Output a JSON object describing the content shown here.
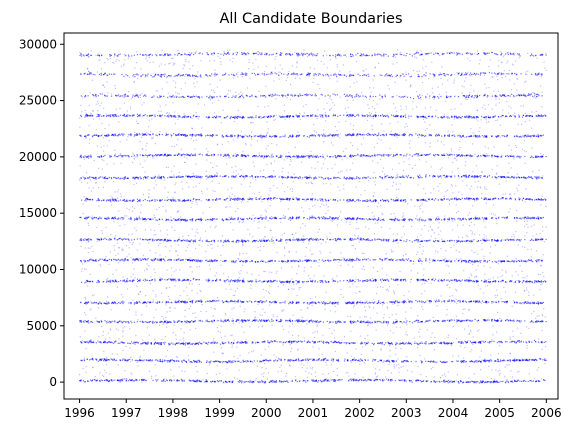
{
  "chart_data": {
    "type": "scatter",
    "title": "All Candidate Boundaries",
    "xlabel": "",
    "ylabel": "",
    "xlim": [
      "1995-09",
      "2006-04"
    ],
    "ylim": [
      -1500,
      31000
    ],
    "x_ticks": [
      "1996",
      "1997",
      "1998",
      "1999",
      "2000",
      "2001",
      "2002",
      "2003",
      "2004",
      "2005",
      "2006"
    ],
    "y_ticks": [
      0,
      5000,
      10000,
      15000,
      20000,
      25000,
      30000
    ],
    "grid": false,
    "legend": "none",
    "marker_color": "#0000ff",
    "x_range": [
      "1996-01",
      "2006-01"
    ],
    "y_range": [
      0,
      29500
    ],
    "dense_bands_y": [
      100,
      1900,
      3500,
      5400,
      7100,
      9000,
      10800,
      12600,
      14500,
      16200,
      18200,
      20100,
      21900,
      23600,
      25400,
      27300,
      29100
    ],
    "gap_dates": [
      "1998-09",
      "2001-09",
      "2003-03"
    ]
  }
}
